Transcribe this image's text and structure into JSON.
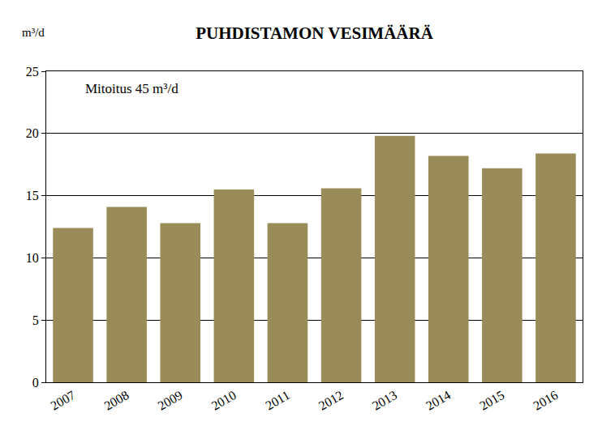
{
  "chart_data": {
    "type": "bar",
    "title": "PUHDISTAMON VESIMÄÄRÄ",
    "ylabel": "m³/d",
    "annotations": [
      "Mitoitus 45 m³/d"
    ],
    "categories": [
      "2007",
      "2008",
      "2009",
      "2010",
      "2011",
      "2012",
      "2013",
      "2014",
      "2015",
      "2016"
    ],
    "values": [
      12.4,
      14.1,
      12.8,
      15.5,
      12.8,
      15.6,
      19.8,
      18.2,
      17.2,
      18.4
    ],
    "color": "#9a8c58",
    "ylim": [
      0,
      25
    ],
    "yticks": [
      0,
      5,
      10,
      15,
      20,
      25
    ],
    "grid": true
  }
}
